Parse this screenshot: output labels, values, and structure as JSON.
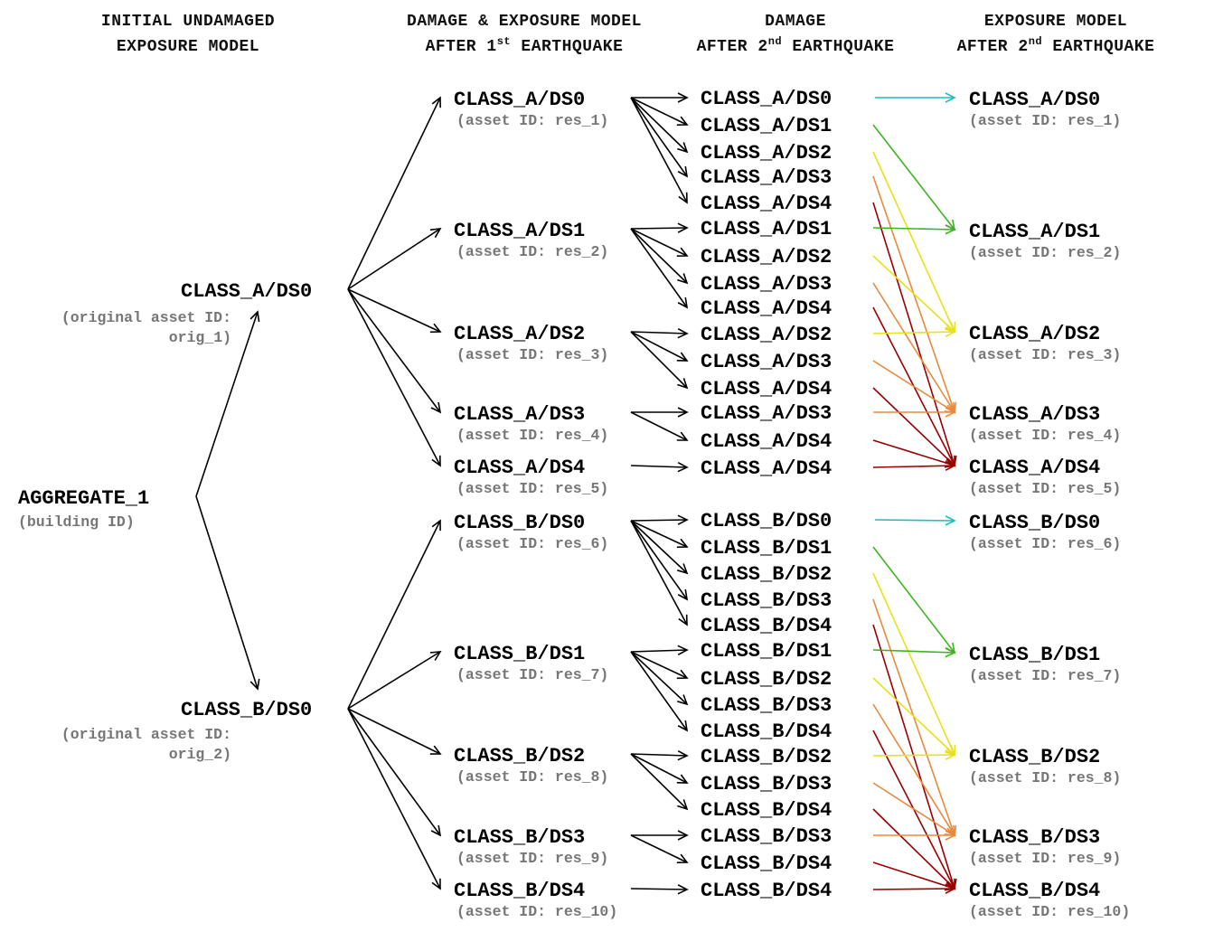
{
  "headers": {
    "col1_line1": "INITIAL UNDAMAGED",
    "col1_line2": "EXPOSURE MODEL",
    "col2_line1": "DAMAGE & EXPOSURE MODEL",
    "col2_line2_pre": "AFTER 1",
    "col2_line2_sup": "st",
    "col2_line2_post": " EARTHQUAKE",
    "col3_line1": "DAMAGE",
    "col3_line2_pre": "AFTER 2",
    "col3_line2_sup": "nd",
    "col3_line2_post": " EARTHQUAKE",
    "col4_line1": "EXPOSURE MODEL",
    "col4_line2_pre": "AFTER 2",
    "col4_line2_sup": "nd",
    "col4_line2_post": " EARTHQUAKE"
  },
  "building": {
    "label": "AGGREGATE_1",
    "sub": "(building ID)"
  },
  "initial": [
    {
      "label": "CLASS_A/DS0",
      "sub1": "(original asset ID:",
      "sub2": "orig_1)"
    },
    {
      "label": "CLASS_B/DS0",
      "sub1": "(original asset ID:",
      "sub2": "orig_2)"
    }
  ],
  "after_first": [
    {
      "label": "CLASS_A/DS0",
      "sub": "(asset ID: res_1)"
    },
    {
      "label": "CLASS_A/DS1",
      "sub": "(asset ID: res_2)"
    },
    {
      "label": "CLASS_A/DS2",
      "sub": "(asset ID: res_3)"
    },
    {
      "label": "CLASS_A/DS3",
      "sub": "(asset ID: res_4)"
    },
    {
      "label": "CLASS_A/DS4",
      "sub": "(asset ID: res_5)"
    },
    {
      "label": "CLASS_B/DS0",
      "sub": "(asset ID: res_6)"
    },
    {
      "label": "CLASS_B/DS1",
      "sub": "(asset ID: res_7)"
    },
    {
      "label": "CLASS_B/DS2",
      "sub": "(asset ID: res_8)"
    },
    {
      "label": "CLASS_B/DS3",
      "sub": "(asset ID: res_9)"
    },
    {
      "label": "CLASS_B/DS4",
      "sub": "(asset ID: res_10)"
    }
  ],
  "after_second": [
    "CLASS_A/DS0",
    "CLASS_A/DS1",
    "CLASS_A/DS2",
    "CLASS_A/DS3",
    "CLASS_A/DS4",
    "CLASS_A/DS1",
    "CLASS_A/DS2",
    "CLASS_A/DS3",
    "CLASS_A/DS4",
    "CLASS_A/DS2",
    "CLASS_A/DS3",
    "CLASS_A/DS4",
    "CLASS_A/DS3",
    "CLASS_A/DS4",
    "CLASS_A/DS4",
    "CLASS_B/DS0",
    "CLASS_B/DS1",
    "CLASS_B/DS2",
    "CLASS_B/DS3",
    "CLASS_B/DS4",
    "CLASS_B/DS1",
    "CLASS_B/DS2",
    "CLASS_B/DS3",
    "CLASS_B/DS4",
    "CLASS_B/DS2",
    "CLASS_B/DS3",
    "CLASS_B/DS4",
    "CLASS_B/DS3",
    "CLASS_B/DS4",
    "CLASS_B/DS4"
  ],
  "final": [
    {
      "label": "CLASS_A/DS0",
      "sub": "(asset ID: res_1)"
    },
    {
      "label": "CLASS_A/DS1",
      "sub": "(asset ID: res_2)"
    },
    {
      "label": "CLASS_A/DS2",
      "sub": "(asset ID: res_3)"
    },
    {
      "label": "CLASS_A/DS3",
      "sub": "(asset ID: res_4)"
    },
    {
      "label": "CLASS_A/DS4",
      "sub": "(asset ID: res_5)"
    },
    {
      "label": "CLASS_B/DS0",
      "sub": "(asset ID: res_6)"
    },
    {
      "label": "CLASS_B/DS1",
      "sub": "(asset ID: res_7)"
    },
    {
      "label": "CLASS_B/DS2",
      "sub": "(asset ID: res_8)"
    },
    {
      "label": "CLASS_B/DS3",
      "sub": "(asset ID: res_9)"
    },
    {
      "label": "CLASS_B/DS4",
      "sub": "(asset ID: res_10)"
    }
  ],
  "damage_state_colors": {
    "DS0": "#1fbdbd",
    "DS1": "#3ab51f",
    "DS2": "#e8e01a",
    "DS3": "#e88a3c",
    "DS4": "#990000"
  }
}
